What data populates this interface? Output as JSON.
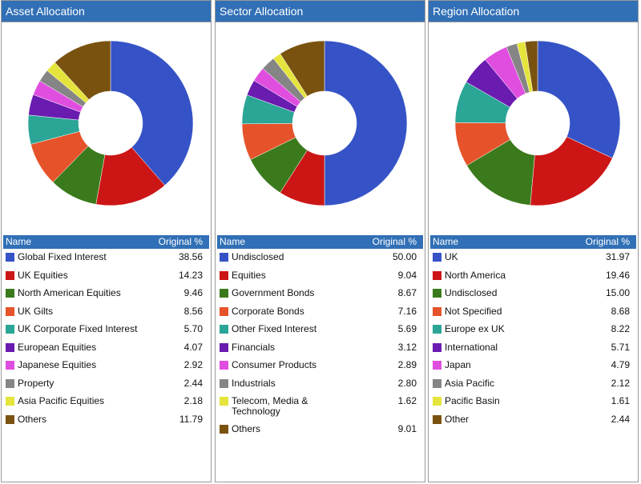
{
  "chart_data": [
    {
      "type": "pie",
      "donut": true,
      "title": "Asset Allocation",
      "columns": [
        "Name",
        "Original %"
      ],
      "categories": [
        "Global Fixed Interest",
        "UK Equities",
        "North American Equities",
        "UK Gilts",
        "UK Corporate Fixed Interest",
        "European Equities",
        "Japanese Equities",
        "Property",
        "Asia Pacific Equities",
        "Others"
      ],
      "values": [
        38.56,
        14.23,
        9.46,
        8.56,
        5.7,
        4.07,
        2.92,
        2.44,
        2.18,
        11.79
      ],
      "value_labels": [
        "38.56",
        "14.23",
        "9.46",
        "8.56",
        "5.70",
        "4.07",
        "2.92",
        "2.44",
        "2.18",
        "11.79"
      ],
      "colors": [
        "#3553c6",
        "#cc1616",
        "#3b7a1c",
        "#e6532a",
        "#2aa596",
        "#6a1bb0",
        "#e04ee0",
        "#858585",
        "#e4e43c",
        "#7a5210"
      ]
    },
    {
      "type": "pie",
      "donut": true,
      "title": "Sector Allocation",
      "columns": [
        "Name",
        "Original %"
      ],
      "categories": [
        "Undisclosed",
        "Equities",
        "Government Bonds",
        "Corporate Bonds",
        "Other Fixed Interest",
        "Financials",
        "Consumer Products",
        "Industrials",
        "Telecom, Media & Technology",
        "Others"
      ],
      "values": [
        50.0,
        9.04,
        8.67,
        7.16,
        5.69,
        3.12,
        2.89,
        2.8,
        1.62,
        9.01
      ],
      "value_labels": [
        "50.00",
        "9.04",
        "8.67",
        "7.16",
        "5.69",
        "3.12",
        "2.89",
        "2.80",
        "1.62",
        "9.01"
      ],
      "colors": [
        "#3553c6",
        "#cc1616",
        "#3b7a1c",
        "#e6532a",
        "#2aa596",
        "#6a1bb0",
        "#e04ee0",
        "#858585",
        "#e4e43c",
        "#7a5210"
      ]
    },
    {
      "type": "pie",
      "donut": true,
      "title": "Region Allocation",
      "columns": [
        "Name",
        "Original %"
      ],
      "categories": [
        "UK",
        "North America",
        "Undisclosed",
        "Not Specified",
        "Europe ex UK",
        "International",
        "Japan",
        "Asia Pacific",
        "Pacific Basin",
        "Other"
      ],
      "values": [
        31.97,
        19.46,
        15.0,
        8.68,
        8.22,
        5.71,
        4.79,
        2.12,
        1.61,
        2.44
      ],
      "value_labels": [
        "31.97",
        "19.46",
        "15.00",
        "8.68",
        "8.22",
        "5.71",
        "4.79",
        "2.12",
        "1.61",
        "2.44"
      ],
      "colors": [
        "#3553c6",
        "#cc1616",
        "#3b7a1c",
        "#e6532a",
        "#2aa596",
        "#6a1bb0",
        "#e04ee0",
        "#858585",
        "#e4e43c",
        "#7a5210"
      ]
    }
  ]
}
